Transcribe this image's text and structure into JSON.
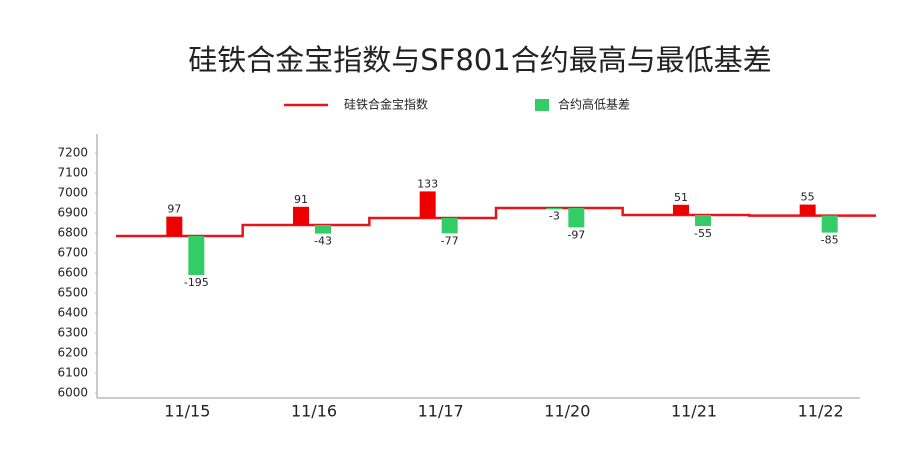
{
  "chart_data": {
    "type": "step-basis",
    "title": "硅铁合金宝指数与SF801合约最高与最低基差",
    "categories": [
      "11/15",
      "11/16",
      "11/17",
      "11/20",
      "11/21",
      "11/22"
    ],
    "series": [
      {
        "name": "硅铁合金宝指数",
        "color": "#e8141b",
        "values": [
          6785,
          6840,
          6875,
          6925,
          6890,
          6887
        ]
      },
      {
        "name": "合约高低基差",
        "color": "#33cc66",
        "positive_color": "#ee0000",
        "high": [
          97,
          91,
          133,
          -3,
          51,
          55
        ],
        "low": [
          -195,
          -43,
          -77,
          -97,
          -55,
          -85
        ]
      }
    ],
    "ylim": [
      6000,
      7300
    ],
    "yticks": [
      6000,
      6100,
      6200,
      6300,
      6400,
      6500,
      6600,
      6700,
      6800,
      6900,
      7000,
      7100,
      7200
    ],
    "grid": false
  }
}
